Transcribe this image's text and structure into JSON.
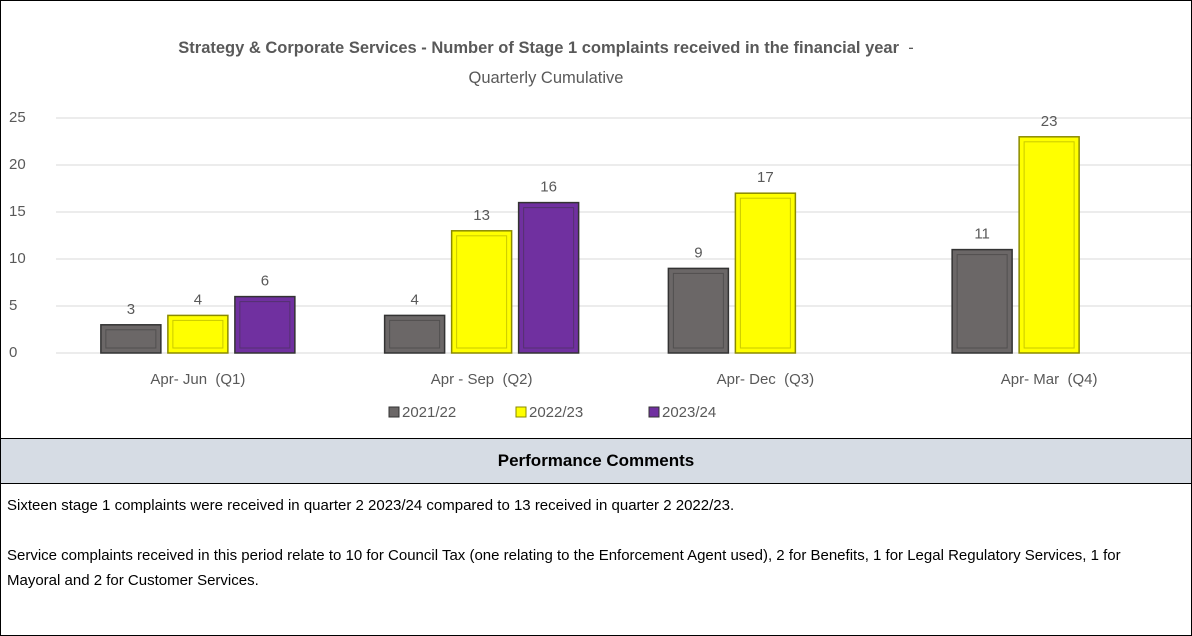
{
  "chart_data": {
    "type": "bar",
    "title": "Strategy & Corporate Services - Number of Stage 1 complaints received in the financial year",
    "subtitle": "- Quarterly Cumulative",
    "categories": [
      "Apr- Jun  (Q1)",
      "Apr - Sep  (Q2)",
      "Apr- Dec  (Q3)",
      "Apr- Mar  (Q4)"
    ],
    "series": [
      {
        "name": "2021/22",
        "color": "#6b6767",
        "values": [
          3,
          4,
          9,
          11
        ]
      },
      {
        "name": "2022/23",
        "color": "#ffff00",
        "values": [
          4,
          13,
          17,
          23
        ]
      },
      {
        "name": "2023/24",
        "color": "#7030a0",
        "values": [
          6,
          16,
          null,
          null
        ]
      }
    ],
    "ylim": [
      0,
      25
    ],
    "yticks": [
      0,
      5,
      10,
      15,
      20,
      25
    ],
    "grid": true,
    "legend": "bottom"
  },
  "comments": {
    "header": "Performance Comments",
    "paragraphs": [
      "Sixteen stage 1 complaints were received in quarter 2 2023/24 compared to 13 received in quarter 2 2022/23.",
      "Service complaints received in this period relate to 10 for Council Tax (one relating to the Enforcement Agent used), 2 for Benefits, 1 for Legal Regulatory Services, 1 for Mayoral and 2 for Customer Services."
    ]
  }
}
